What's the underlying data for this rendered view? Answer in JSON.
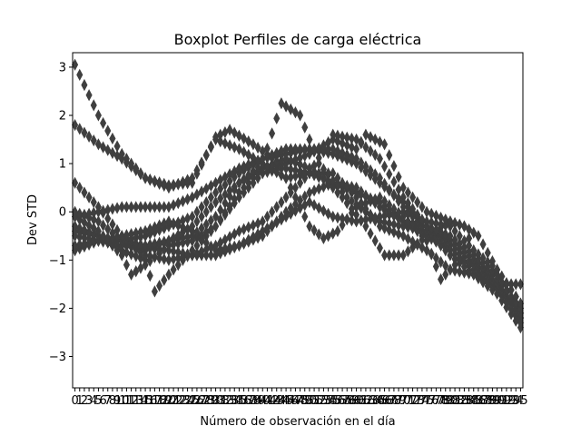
{
  "chart_data": {
    "type": "box",
    "title": "Boxplot Perfiles de carga eléctrica",
    "xlabel": "Número de observación en el día",
    "ylabel": "Dev STD",
    "categories": [
      "0",
      "1",
      "2",
      "3",
      "4",
      "5",
      "6",
      "7",
      "8",
      "9",
      "10",
      "11",
      "12",
      "13",
      "14",
      "15",
      "16",
      "17",
      "18",
      "19",
      "20",
      "21",
      "22",
      "23",
      "24",
      "25",
      "26",
      "27",
      "28",
      "29",
      "30",
      "31",
      "32",
      "33",
      "34",
      "35",
      "36",
      "37",
      "38",
      "39",
      "40",
      "41",
      "42",
      "43",
      "44",
      "45",
      "46",
      "47",
      "48",
      "49",
      "50",
      "51",
      "52",
      "53",
      "54",
      "55",
      "56",
      "57",
      "58",
      "59",
      "60",
      "61",
      "62",
      "63",
      "64",
      "65",
      "66",
      "67",
      "68",
      "69",
      "70",
      "71",
      "72",
      "73",
      "74",
      "75",
      "76",
      "77",
      "78",
      "79",
      "80",
      "81",
      "82",
      "83",
      "84",
      "85",
      "86",
      "87",
      "88",
      "89",
      "90",
      "91",
      "92",
      "93",
      "94",
      "95"
    ],
    "yticks": [
      -3,
      -2,
      -1,
      0,
      1,
      2,
      3
    ],
    "ylim": [
      -3.65,
      3.3
    ],
    "grid": false,
    "median_color": "#333333",
    "flier_color": "#3f3f3f",
    "profile_knots": {
      "A": [
        [
          0,
          3.05
        ],
        [
          5,
          2.0
        ],
        [
          10,
          1.2
        ],
        [
          15,
          0.7
        ],
        [
          20,
          0.5
        ],
        [
          25,
          0.7
        ],
        [
          30,
          1.5
        ],
        [
          35,
          1.3
        ],
        [
          40,
          1.0
        ],
        [
          45,
          0.7
        ],
        [
          50,
          0.8
        ],
        [
          55,
          0.6
        ],
        [
          60,
          0.4
        ],
        [
          65,
          0.2
        ],
        [
          70,
          -0.2
        ],
        [
          75,
          -0.5
        ],
        [
          80,
          -0.8
        ],
        [
          85,
          -1.2
        ],
        [
          90,
          -1.5
        ],
        [
          95,
          -1.5
        ]
      ],
      "B": [
        [
          0,
          1.8
        ],
        [
          5,
          1.4
        ],
        [
          10,
          1.1
        ],
        [
          15,
          0.7
        ],
        [
          20,
          0.55
        ],
        [
          25,
          0.6
        ],
        [
          30,
          1.55
        ],
        [
          33,
          1.7
        ],
        [
          38,
          1.4
        ],
        [
          45,
          0.9
        ],
        [
          50,
          0.8
        ],
        [
          55,
          0.8
        ],
        [
          60,
          0.3
        ],
        [
          65,
          -0.3
        ],
        [
          70,
          -0.5
        ],
        [
          75,
          -0.8
        ],
        [
          80,
          -1.2
        ],
        [
          85,
          -1.3
        ],
        [
          90,
          -1.6
        ],
        [
          95,
          -2.3
        ]
      ],
      "C": [
        [
          0,
          0.6
        ],
        [
          5,
          0.1
        ],
        [
          10,
          -0.5
        ],
        [
          15,
          -0.8
        ],
        [
          20,
          -0.6
        ],
        [
          25,
          -0.3
        ],
        [
          30,
          0.2
        ],
        [
          35,
          0.6
        ],
        [
          40,
          1.0
        ],
        [
          44,
          2.25
        ],
        [
          48,
          2.0
        ],
        [
          52,
          1.0
        ],
        [
          58,
          0.3
        ],
        [
          62,
          0.0
        ],
        [
          65,
          -0.2
        ],
        [
          70,
          -0.3
        ],
        [
          75,
          -0.4
        ],
        [
          80,
          -0.9
        ],
        [
          85,
          -1.3
        ],
        [
          90,
          -1.7
        ],
        [
          95,
          -2.4
        ]
      ],
      "D": [
        [
          0,
          0.0
        ],
        [
          5,
          -0.2
        ],
        [
          10,
          -0.6
        ],
        [
          15,
          -0.9
        ],
        [
          20,
          -1.0
        ],
        [
          25,
          -0.9
        ],
        [
          30,
          -0.7
        ],
        [
          35,
          -0.4
        ],
        [
          40,
          -0.2
        ],
        [
          45,
          0.3
        ],
        [
          50,
          0.8
        ],
        [
          55,
          1.6
        ],
        [
          60,
          1.5
        ],
        [
          65,
          1.1
        ],
        [
          70,
          0.3
        ],
        [
          75,
          -0.3
        ],
        [
          80,
          -0.6
        ],
        [
          85,
          -1.0
        ],
        [
          90,
          -1.4
        ],
        [
          95,
          -2.1
        ]
      ],
      "E": [
        [
          0,
          -0.3
        ],
        [
          5,
          -0.5
        ],
        [
          10,
          -0.8
        ],
        [
          15,
          -1.0
        ],
        [
          17,
          -1.65
        ],
        [
          20,
          -1.3
        ],
        [
          25,
          -0.8
        ],
        [
          30,
          -0.3
        ],
        [
          35,
          0.4
        ],
        [
          40,
          0.9
        ],
        [
          45,
          1.1
        ],
        [
          50,
          0.9
        ],
        [
          53,
          0.7
        ],
        [
          57,
          0.3
        ],
        [
          62,
          -0.3
        ],
        [
          66,
          -0.9
        ],
        [
          70,
          -0.9
        ],
        [
          75,
          -0.5
        ],
        [
          80,
          -0.2
        ],
        [
          83,
          -0.3
        ],
        [
          87,
          -1.3
        ],
        [
          89,
          -1.5
        ],
        [
          95,
          -2.0
        ]
      ],
      "F": [
        [
          0,
          -0.8
        ],
        [
          5,
          -0.6
        ],
        [
          10,
          -0.6
        ],
        [
          15,
          -0.7
        ],
        [
          20,
          -0.6
        ],
        [
          25,
          -0.5
        ],
        [
          30,
          -0.1
        ],
        [
          35,
          0.6
        ],
        [
          40,
          0.9
        ],
        [
          45,
          1.0
        ],
        [
          50,
          1.2
        ],
        [
          55,
          1.5
        ],
        [
          60,
          1.3
        ],
        [
          62,
          1.6
        ],
        [
          66,
          1.4
        ],
        [
          70,
          0.5
        ],
        [
          75,
          0.0
        ],
        [
          80,
          -0.2
        ],
        [
          83,
          -0.3
        ],
        [
          86,
          -0.5
        ],
        [
          90,
          -1.2
        ],
        [
          95,
          -1.9
        ]
      ],
      "G": [
        [
          0,
          -0.1
        ],
        [
          5,
          -0.4
        ],
        [
          10,
          -0.9
        ],
        [
          12,
          -1.3
        ],
        [
          15,
          -1.1
        ],
        [
          20,
          -0.7
        ],
        [
          25,
          -0.6
        ],
        [
          30,
          -0.3
        ],
        [
          35,
          0.3
        ],
        [
          40,
          0.8
        ],
        [
          44,
          0.9
        ],
        [
          50,
          -0.3
        ],
        [
          53,
          -0.55
        ],
        [
          56,
          -0.4
        ],
        [
          60,
          0.1
        ],
        [
          65,
          0.3
        ],
        [
          70,
          -0.1
        ],
        [
          75,
          -0.6
        ],
        [
          78,
          -1.4
        ],
        [
          82,
          -1.0
        ],
        [
          85,
          -1.1
        ],
        [
          90,
          -1.3
        ],
        [
          95,
          -2.2
        ]
      ],
      "H": [
        [
          0,
          -0.4
        ],
        [
          5,
          -0.5
        ],
        [
          10,
          -0.6
        ],
        [
          15,
          -0.5
        ],
        [
          20,
          -0.3
        ],
        [
          25,
          -0.1
        ],
        [
          30,
          0.4
        ],
        [
          35,
          0.8
        ],
        [
          40,
          1.1
        ],
        [
          45,
          1.3
        ],
        [
          50,
          1.3
        ],
        [
          55,
          1.3
        ],
        [
          60,
          1.1
        ],
        [
          65,
          0.7
        ],
        [
          70,
          0.1
        ],
        [
          75,
          -0.4
        ],
        [
          80,
          -0.7
        ],
        [
          85,
          -1.1
        ],
        [
          90,
          -1.5
        ],
        [
          95,
          -2.2
        ]
      ],
      "I": [
        [
          0,
          -0.7
        ],
        [
          5,
          -0.6
        ],
        [
          10,
          -0.5
        ],
        [
          15,
          -0.4
        ],
        [
          20,
          -0.2
        ],
        [
          25,
          -0.4
        ],
        [
          30,
          -0.8
        ],
        [
          35,
          -0.7
        ],
        [
          40,
          -0.4
        ],
        [
          45,
          -0.1
        ],
        [
          50,
          0.2
        ],
        [
          55,
          -0.1
        ],
        [
          60,
          -0.2
        ],
        [
          65,
          -0.1
        ],
        [
          70,
          0.0
        ],
        [
          75,
          -0.2
        ],
        [
          80,
          -0.3
        ],
        [
          85,
          -0.8
        ],
        [
          90,
          -1.2
        ],
        [
          95,
          -1.9
        ]
      ],
      "J": [
        [
          0,
          -0.1
        ],
        [
          5,
          0.0
        ],
        [
          10,
          0.1
        ],
        [
          15,
          0.1
        ],
        [
          20,
          0.1
        ],
        [
          25,
          0.3
        ],
        [
          30,
          0.6
        ],
        [
          35,
          0.9
        ],
        [
          40,
          1.1
        ],
        [
          45,
          1.2
        ],
        [
          50,
          1.3
        ],
        [
          55,
          1.2
        ],
        [
          60,
          1.0
        ],
        [
          65,
          0.6
        ],
        [
          70,
          0.2
        ],
        [
          75,
          -0.3
        ],
        [
          80,
          -0.6
        ],
        [
          85,
          -1.0
        ],
        [
          90,
          -1.4
        ],
        [
          95,
          -2.0
        ]
      ],
      "K": [
        [
          0,
          -0.5
        ],
        [
          5,
          -0.6
        ],
        [
          10,
          -0.7
        ],
        [
          15,
          -0.75
        ],
        [
          20,
          -0.8
        ],
        [
          25,
          -0.9
        ],
        [
          30,
          -0.9
        ],
        [
          35,
          -0.7
        ],
        [
          40,
          -0.5
        ],
        [
          45,
          0.0
        ],
        [
          50,
          0.4
        ],
        [
          55,
          0.6
        ],
        [
          60,
          0.5
        ],
        [
          65,
          0.1
        ],
        [
          70,
          -0.2
        ],
        [
          75,
          -0.3
        ],
        [
          80,
          -0.5
        ],
        [
          85,
          -0.9
        ],
        [
          90,
          -1.3
        ],
        [
          95,
          -2.1
        ]
      ]
    }
  }
}
